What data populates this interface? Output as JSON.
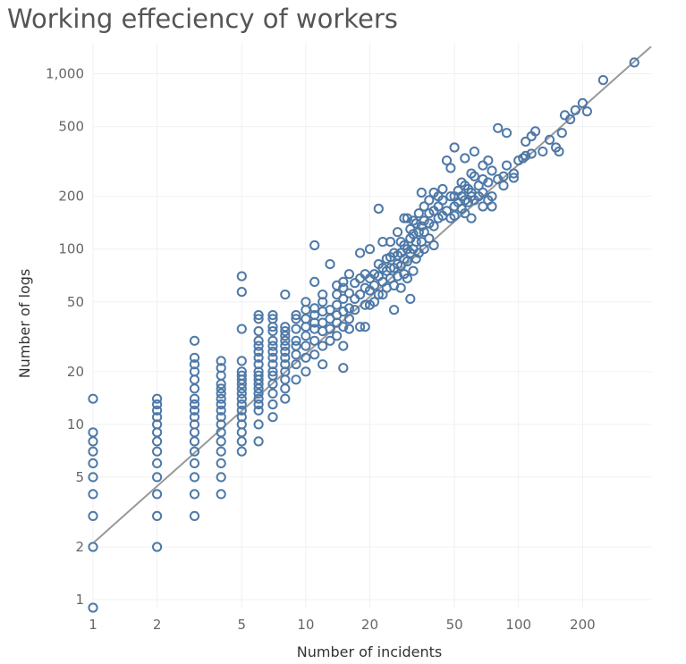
{
  "chart_data": {
    "type": "scatter",
    "title": "Working effeciency of workers",
    "xlabel": "Number of incidents",
    "ylabel": "Number of logs",
    "x_scale": "log",
    "y_scale": "log",
    "xlim": [
      1,
      420
    ],
    "ylim": [
      0.9,
      1500
    ],
    "x_ticks": [
      1,
      2,
      5,
      10,
      20,
      50,
      100,
      200
    ],
    "x_tick_labels": [
      "1",
      "2",
      "5",
      "10",
      "20",
      "50",
      "100",
      "200"
    ],
    "y_ticks": [
      1,
      2,
      5,
      10,
      20,
      50,
      100,
      200,
      500,
      1000
    ],
    "y_tick_labels": [
      "1",
      "2",
      "5",
      "10",
      "20",
      "50",
      "100",
      "200",
      "500",
      "1,000"
    ],
    "grid": true,
    "marker": "hollow circle",
    "point_color": "#4e79a7",
    "trend_line": {
      "type": "power",
      "color": "#999999",
      "a": 2.1,
      "b": 1.08
    },
    "series": [
      {
        "points": [
          [
            1,
            0.9
          ],
          [
            1,
            2
          ],
          [
            1,
            3
          ],
          [
            1,
            4
          ],
          [
            1,
            5
          ],
          [
            1,
            6
          ],
          [
            1,
            7
          ],
          [
            1,
            8
          ],
          [
            1,
            9
          ],
          [
            1,
            14
          ],
          [
            2,
            2
          ],
          [
            2,
            3
          ],
          [
            2,
            4
          ],
          [
            2,
            5
          ],
          [
            2,
            6
          ],
          [
            2,
            7
          ],
          [
            2,
            8
          ],
          [
            2,
            9
          ],
          [
            2,
            10
          ],
          [
            2,
            11
          ],
          [
            2,
            12
          ],
          [
            2,
            13
          ],
          [
            2,
            14
          ],
          [
            3,
            3
          ],
          [
            3,
            4
          ],
          [
            3,
            5
          ],
          [
            3,
            6
          ],
          [
            3,
            7
          ],
          [
            3,
            8
          ],
          [
            3,
            9
          ],
          [
            3,
            10
          ],
          [
            3,
            11
          ],
          [
            3,
            12
          ],
          [
            3,
            13
          ],
          [
            3,
            14
          ],
          [
            3,
            16
          ],
          [
            3,
            18
          ],
          [
            3,
            20
          ],
          [
            3,
            22
          ],
          [
            3,
            24
          ],
          [
            3,
            30
          ],
          [
            4,
            4
          ],
          [
            4,
            5
          ],
          [
            4,
            6
          ],
          [
            4,
            7
          ],
          [
            4,
            8
          ],
          [
            4,
            9
          ],
          [
            4,
            10
          ],
          [
            4,
            11
          ],
          [
            4,
            12
          ],
          [
            4,
            13
          ],
          [
            4,
            14
          ],
          [
            4,
            15
          ],
          [
            4,
            16
          ],
          [
            4,
            17
          ],
          [
            4,
            19
          ],
          [
            4,
            21
          ],
          [
            4,
            23
          ],
          [
            5,
            7
          ],
          [
            5,
            8
          ],
          [
            5,
            9
          ],
          [
            5,
            10
          ],
          [
            5,
            11
          ],
          [
            5,
            12
          ],
          [
            5,
            13
          ],
          [
            5,
            14
          ],
          [
            5,
            15
          ],
          [
            5,
            16
          ],
          [
            5,
            17
          ],
          [
            5,
            18
          ],
          [
            5,
            19
          ],
          [
            5,
            20
          ],
          [
            5,
            23
          ],
          [
            5,
            35
          ],
          [
            5,
            57
          ],
          [
            5,
            70
          ],
          [
            6,
            8
          ],
          [
            6,
            10
          ],
          [
            6,
            12
          ],
          [
            6,
            13
          ],
          [
            6,
            14
          ],
          [
            6,
            15
          ],
          [
            6,
            16
          ],
          [
            6,
            17
          ],
          [
            6,
            18
          ],
          [
            6,
            19
          ],
          [
            6,
            20
          ],
          [
            6,
            22
          ],
          [
            6,
            24
          ],
          [
            6,
            26
          ],
          [
            6,
            28
          ],
          [
            6,
            30
          ],
          [
            6,
            34
          ],
          [
            6,
            40
          ],
          [
            6,
            42
          ],
          [
            7,
            11
          ],
          [
            7,
            13
          ],
          [
            7,
            15
          ],
          [
            7,
            17
          ],
          [
            7,
            19
          ],
          [
            7,
            20
          ],
          [
            7,
            22
          ],
          [
            7,
            24
          ],
          [
            7,
            26
          ],
          [
            7,
            28
          ],
          [
            7,
            30
          ],
          [
            7,
            34
          ],
          [
            7,
            36
          ],
          [
            7,
            40
          ],
          [
            7,
            42
          ],
          [
            8,
            14
          ],
          [
            8,
            16
          ],
          [
            8,
            18
          ],
          [
            8,
            20
          ],
          [
            8,
            22
          ],
          [
            8,
            24
          ],
          [
            8,
            26
          ],
          [
            8,
            28
          ],
          [
            8,
            30
          ],
          [
            8,
            32
          ],
          [
            8,
            34
          ],
          [
            8,
            36
          ],
          [
            8,
            55
          ],
          [
            9,
            18
          ],
          [
            9,
            22
          ],
          [
            9,
            25
          ],
          [
            9,
            28
          ],
          [
            9,
            30
          ],
          [
            9,
            35
          ],
          [
            9,
            40
          ],
          [
            9,
            42
          ],
          [
            10,
            20
          ],
          [
            10,
            24
          ],
          [
            10,
            28
          ],
          [
            10,
            32
          ],
          [
            10,
            36
          ],
          [
            10,
            40
          ],
          [
            10,
            45
          ],
          [
            10,
            50
          ],
          [
            11,
            25
          ],
          [
            11,
            30
          ],
          [
            11,
            35
          ],
          [
            11,
            38
          ],
          [
            11,
            42
          ],
          [
            11,
            46
          ],
          [
            11,
            65
          ],
          [
            11,
            105
          ],
          [
            12,
            22
          ],
          [
            12,
            28
          ],
          [
            12,
            34
          ],
          [
            12,
            38
          ],
          [
            12,
            44
          ],
          [
            12,
            50
          ],
          [
            12,
            55
          ],
          [
            13,
            30
          ],
          [
            13,
            35
          ],
          [
            13,
            40
          ],
          [
            13,
            45
          ],
          [
            13,
            82
          ],
          [
            14,
            32
          ],
          [
            14,
            38
          ],
          [
            14,
            42
          ],
          [
            14,
            48
          ],
          [
            14,
            55
          ],
          [
            14,
            62
          ],
          [
            15,
            21
          ],
          [
            15,
            28
          ],
          [
            15,
            36
          ],
          [
            15,
            44
          ],
          [
            15,
            52
          ],
          [
            15,
            60
          ],
          [
            15,
            65
          ],
          [
            16,
            35
          ],
          [
            16,
            40
          ],
          [
            16,
            46
          ],
          [
            16,
            56
          ],
          [
            16,
            72
          ],
          [
            17,
            45
          ],
          [
            17,
            52
          ],
          [
            17,
            64
          ],
          [
            18,
            36
          ],
          [
            18,
            55
          ],
          [
            18,
            68
          ],
          [
            18,
            95
          ],
          [
            19,
            36
          ],
          [
            19,
            48
          ],
          [
            19,
            60
          ],
          [
            19,
            72
          ],
          [
            20,
            48
          ],
          [
            20,
            58
          ],
          [
            20,
            68
          ],
          [
            20,
            100
          ],
          [
            21,
            50
          ],
          [
            21,
            62
          ],
          [
            21,
            72
          ],
          [
            22,
            55
          ],
          [
            22,
            70
          ],
          [
            22,
            82
          ],
          [
            22,
            170
          ],
          [
            23,
            55
          ],
          [
            23,
            65
          ],
          [
            23,
            78
          ],
          [
            23,
            110
          ],
          [
            24,
            60
          ],
          [
            24,
            75
          ],
          [
            24,
            88
          ],
          [
            25,
            68
          ],
          [
            25,
            78
          ],
          [
            25,
            90
          ],
          [
            25,
            110
          ],
          [
            26,
            45
          ],
          [
            26,
            62
          ],
          [
            26,
            78
          ],
          [
            26,
            95
          ],
          [
            27,
            70
          ],
          [
            27,
            82
          ],
          [
            27,
            92
          ],
          [
            27,
            125
          ],
          [
            28,
            60
          ],
          [
            28,
            80
          ],
          [
            28,
            95
          ],
          [
            28,
            110
          ],
          [
            29,
            72
          ],
          [
            29,
            88
          ],
          [
            29,
            105
          ],
          [
            29,
            150
          ],
          [
            30,
            68
          ],
          [
            30,
            85
          ],
          [
            30,
            100
          ],
          [
            30,
            150
          ],
          [
            31,
            52
          ],
          [
            31,
            95
          ],
          [
            31,
            115
          ],
          [
            31,
            130
          ],
          [
            32,
            75
          ],
          [
            32,
            100
          ],
          [
            32,
            122
          ],
          [
            32,
            145
          ],
          [
            33,
            88
          ],
          [
            33,
            110
          ],
          [
            33,
            140
          ],
          [
            34,
            95
          ],
          [
            34,
            125
          ],
          [
            34,
            160
          ],
          [
            35,
            110
          ],
          [
            35,
            135
          ],
          [
            35,
            210
          ],
          [
            36,
            100
          ],
          [
            36,
            125
          ],
          [
            36,
            145
          ],
          [
            36,
            175
          ],
          [
            38,
            115
          ],
          [
            38,
            140
          ],
          [
            38,
            160
          ],
          [
            38,
            190
          ],
          [
            40,
            105
          ],
          [
            40,
            135
          ],
          [
            40,
            165
          ],
          [
            40,
            210
          ],
          [
            42,
            150
          ],
          [
            42,
            175
          ],
          [
            42,
            200
          ],
          [
            44,
            155
          ],
          [
            44,
            190
          ],
          [
            44,
            220
          ],
          [
            46,
            165
          ],
          [
            46,
            320
          ],
          [
            48,
            150
          ],
          [
            48,
            200
          ],
          [
            48,
            290
          ],
          [
            50,
            155
          ],
          [
            50,
            175
          ],
          [
            50,
            200
          ],
          [
            50,
            380
          ],
          [
            52,
            185
          ],
          [
            52,
            215
          ],
          [
            54,
            170
          ],
          [
            54,
            200
          ],
          [
            54,
            240
          ],
          [
            56,
            160
          ],
          [
            56,
            190
          ],
          [
            56,
            230
          ],
          [
            56,
            330
          ],
          [
            58,
            185
          ],
          [
            58,
            220
          ],
          [
            60,
            150
          ],
          [
            60,
            200
          ],
          [
            60,
            210
          ],
          [
            60,
            270
          ],
          [
            62,
            190
          ],
          [
            62,
            260
          ],
          [
            62,
            360
          ],
          [
            65,
            200
          ],
          [
            65,
            230
          ],
          [
            68,
            175
          ],
          [
            68,
            210
          ],
          [
            68,
            250
          ],
          [
            68,
            300
          ],
          [
            72,
            190
          ],
          [
            72,
            240
          ],
          [
            72,
            320
          ],
          [
            75,
            175
          ],
          [
            75,
            200
          ],
          [
            75,
            280
          ],
          [
            80,
            250
          ],
          [
            80,
            490
          ],
          [
            85,
            230
          ],
          [
            85,
            260
          ],
          [
            88,
            300
          ],
          [
            88,
            460
          ],
          [
            95,
            255
          ],
          [
            95,
            270
          ],
          [
            100,
            320
          ],
          [
            105,
            330
          ],
          [
            108,
            340
          ],
          [
            108,
            410
          ],
          [
            115,
            350
          ],
          [
            115,
            440
          ],
          [
            120,
            470
          ],
          [
            130,
            360
          ],
          [
            140,
            420
          ],
          [
            150,
            380
          ],
          [
            155,
            360
          ],
          [
            160,
            460
          ],
          [
            165,
            580
          ],
          [
            175,
            550
          ],
          [
            185,
            620
          ],
          [
            200,
            680
          ],
          [
            210,
            610
          ],
          [
            250,
            920
          ],
          [
            350,
            1160
          ]
        ]
      }
    ]
  }
}
